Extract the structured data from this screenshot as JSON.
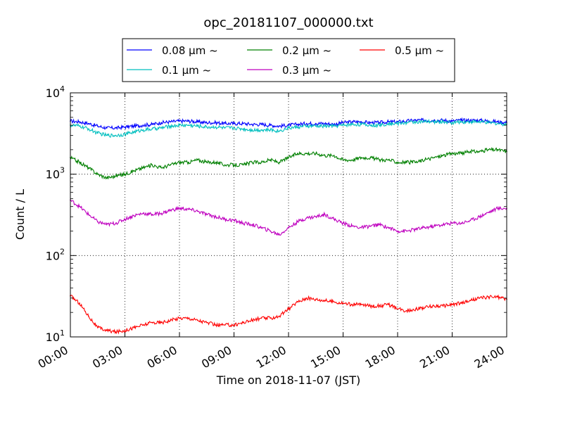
{
  "chart_data": {
    "type": "line",
    "title": "opc_20181107_000000.txt",
    "xlabel": "Time on 2018-11-07 (JST)",
    "ylabel": "Count / L",
    "xlim_hours": [
      0,
      24
    ],
    "x_ticks": [
      "00:00",
      "03:00",
      "06:00",
      "09:00",
      "12:00",
      "15:00",
      "18:00",
      "21:00",
      "24:00"
    ],
    "y_scale": "log",
    "ylim": [
      10,
      10000
    ],
    "y_ticks": [
      {
        "base": "10",
        "exp": "1"
      },
      {
        "base": "10",
        "exp": "2"
      },
      {
        "base": "10",
        "exp": "3"
      },
      {
        "base": "10",
        "exp": "4"
      }
    ],
    "grid": true,
    "legend_position": "top-center",
    "x_units": "hours",
    "series": [
      {
        "name": "0.08 μm ~",
        "color": "#0000ff",
        "x": [
          0,
          0.5,
          1,
          1.5,
          2,
          2.5,
          3,
          3.5,
          4,
          4.5,
          5,
          5.5,
          6,
          6.5,
          7,
          7.5,
          8,
          8.5,
          9,
          9.5,
          10,
          10.5,
          11,
          11.5,
          12,
          12.5,
          13,
          13.5,
          14,
          14.5,
          15,
          15.5,
          16,
          16.5,
          17,
          17.5,
          18,
          18.5,
          19,
          19.5,
          20,
          20.5,
          21,
          21.5,
          22,
          22.5,
          23,
          23.5,
          24
        ],
        "values": [
          4500,
          4400,
          4200,
          3900,
          3700,
          3700,
          3800,
          3900,
          4000,
          4100,
          4300,
          4400,
          4500,
          4500,
          4400,
          4300,
          4300,
          4200,
          4200,
          4200,
          4100,
          4100,
          4000,
          3900,
          4000,
          4100,
          4200,
          4200,
          4200,
          4100,
          4300,
          4400,
          4400,
          4300,
          4300,
          4400,
          4400,
          4500,
          4600,
          4600,
          4600,
          4600,
          4500,
          4600,
          4600,
          4600,
          4500,
          4400,
          4300
        ]
      },
      {
        "name": "0.1 μm ~",
        "color": "#00bfbf",
        "x": [
          0,
          0.5,
          1,
          1.5,
          2,
          2.5,
          3,
          3.5,
          4,
          4.5,
          5,
          5.5,
          6,
          6.5,
          7,
          7.5,
          8,
          8.5,
          9,
          9.5,
          10,
          10.5,
          11,
          11.5,
          12,
          12.5,
          13,
          13.5,
          14,
          14.5,
          15,
          15.5,
          16,
          16.5,
          17,
          17.5,
          18,
          18.5,
          19,
          19.5,
          20,
          20.5,
          21,
          21.5,
          22,
          22.5,
          23,
          23.5,
          24
        ],
        "values": [
          4000,
          3900,
          3600,
          3200,
          3000,
          3000,
          3100,
          3300,
          3500,
          3600,
          3700,
          3900,
          4000,
          4000,
          3900,
          3800,
          3800,
          3700,
          3700,
          3600,
          3500,
          3500,
          3500,
          3400,
          3700,
          3800,
          3900,
          3900,
          3900,
          3900,
          4000,
          4100,
          4100,
          4000,
          4000,
          4200,
          4200,
          4300,
          4400,
          4400,
          4400,
          4400,
          4300,
          4400,
          4400,
          4400,
          4300,
          4200,
          4100
        ]
      },
      {
        "name": "0.2 μm ~",
        "color": "#008000",
        "x": [
          0,
          0.5,
          1,
          1.5,
          2,
          2.5,
          3,
          3.5,
          4,
          4.5,
          5,
          5.5,
          6,
          6.5,
          7,
          7.5,
          8,
          8.5,
          9,
          9.5,
          10,
          10.5,
          11,
          11.5,
          12,
          12.5,
          13,
          13.5,
          14,
          14.5,
          15,
          15.5,
          16,
          16.5,
          17,
          17.5,
          18,
          18.5,
          19,
          19.5,
          20,
          20.5,
          21,
          21.5,
          22,
          22.5,
          23,
          23.5,
          24
        ],
        "values": [
          1600,
          1400,
          1200,
          1000,
          900,
          950,
          1000,
          1100,
          1200,
          1300,
          1200,
          1300,
          1400,
          1400,
          1500,
          1400,
          1400,
          1300,
          1300,
          1300,
          1400,
          1400,
          1500,
          1400,
          1600,
          1800,
          1800,
          1800,
          1700,
          1700,
          1500,
          1500,
          1600,
          1600,
          1500,
          1500,
          1400,
          1400,
          1400,
          1500,
          1600,
          1700,
          1800,
          1800,
          1900,
          1900,
          2000,
          2000,
          1900
        ]
      },
      {
        "name": "0.3 μm ~",
        "color": "#bf00bf",
        "x": [
          0,
          0.5,
          1,
          1.5,
          2,
          2.5,
          3,
          3.5,
          4,
          4.5,
          5,
          5.5,
          6,
          6.5,
          7,
          7.5,
          8,
          8.5,
          9,
          9.5,
          10,
          10.5,
          11,
          11.5,
          12,
          12.5,
          13,
          13.5,
          14,
          14.5,
          15,
          15.5,
          16,
          16.5,
          17,
          17.5,
          18,
          18.5,
          19,
          19.5,
          20,
          20.5,
          21,
          21.5,
          22,
          22.5,
          23,
          23.5,
          24
        ],
        "values": [
          480,
          400,
          320,
          260,
          240,
          250,
          280,
          310,
          330,
          320,
          330,
          360,
          380,
          370,
          350,
          320,
          300,
          280,
          270,
          250,
          240,
          220,
          200,
          180,
          220,
          260,
          290,
          300,
          320,
          280,
          250,
          230,
          220,
          230,
          240,
          220,
          200,
          200,
          210,
          220,
          230,
          240,
          250,
          250,
          270,
          300,
          340,
          380,
          380
        ]
      },
      {
        "name": "0.5 μm ~",
        "color": "#ff0000",
        "x": [
          0,
          0.5,
          1,
          1.5,
          2,
          2.5,
          3,
          3.5,
          4,
          4.5,
          5,
          5.5,
          6,
          6.5,
          7,
          7.5,
          8,
          8.5,
          9,
          9.5,
          10,
          10.5,
          11,
          11.5,
          12,
          12.5,
          13,
          13.5,
          14,
          14.5,
          15,
          15.5,
          16,
          16.5,
          17,
          17.5,
          18,
          18.5,
          19,
          19.5,
          20,
          20.5,
          21,
          21.5,
          22,
          22.5,
          23,
          23.5,
          24
        ],
        "values": [
          32,
          26,
          18,
          13,
          12,
          11.5,
          12,
          13,
          14,
          15,
          15,
          16,
          17,
          17,
          16,
          15,
          14,
          14,
          14,
          15,
          16,
          17,
          17,
          18,
          22,
          27,
          30,
          29,
          28,
          27,
          26,
          25,
          25,
          24,
          24,
          25,
          22,
          21,
          22,
          23,
          24,
          24,
          25,
          26,
          28,
          30,
          31,
          31,
          29
        ]
      }
    ]
  }
}
